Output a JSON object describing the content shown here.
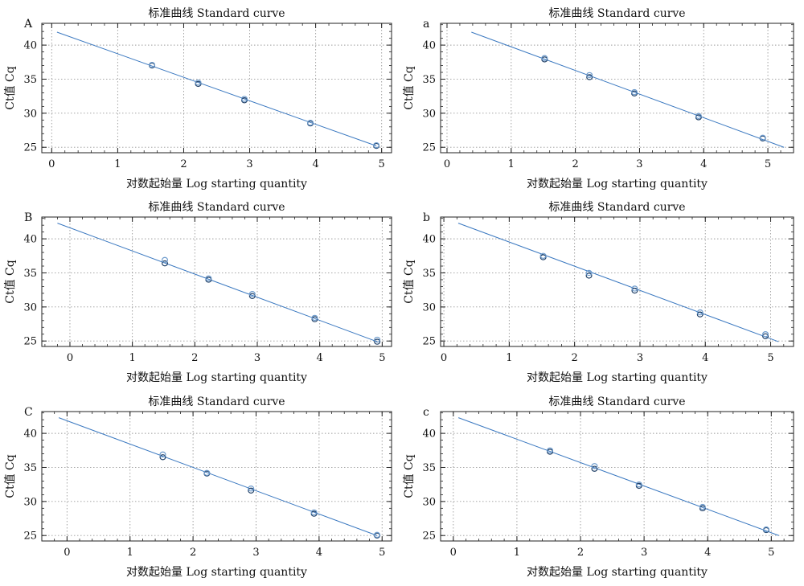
{
  "colors": {
    "fit_line": "#3a78c0",
    "point_dark": "#1f3f66",
    "point_light": "#6e9bcc"
  },
  "chart_data": [
    {
      "type": "scatter",
      "panel_tag": "A",
      "title": "标准曲线 Standard curve",
      "xlabel": "对数起始量 Log starting quantity",
      "ylabel": "Ct值 Cq",
      "xlim": [
        -0.15,
        5.15
      ],
      "ylim": [
        24.2,
        43.2
      ],
      "xticks": [
        0,
        1,
        2,
        3,
        4,
        5
      ],
      "yticks": [
        25,
        30,
        35,
        40
      ],
      "grid": true,
      "series": [
        {
          "points": [
            [
              1.52,
              37.0
            ],
            [
              1.52,
              37.1
            ],
            [
              2.22,
              34.3
            ],
            [
              2.22,
              34.5
            ],
            [
              2.92,
              31.9
            ],
            [
              2.92,
              32.1
            ],
            [
              3.92,
              28.5
            ],
            [
              3.92,
              28.6
            ],
            [
              4.92,
              25.2
            ],
            [
              4.92,
              25.3
            ]
          ]
        }
      ],
      "fit": {
        "x": [
          0.08,
          4.92
        ],
        "y": [
          41.9,
          25.2
        ]
      }
    },
    {
      "type": "scatter",
      "panel_tag": "a",
      "title": "标准曲线 Standard curve",
      "xlabel": "对数起始量 Log starting quantity",
      "ylabel": "Ct值 Cq",
      "xlim": [
        -0.1,
        5.4
      ],
      "ylim": [
        24.2,
        43.2
      ],
      "xticks": [
        0,
        1,
        2,
        3,
        4,
        5
      ],
      "yticks": [
        25,
        30,
        35,
        40
      ],
      "grid": true,
      "series": [
        {
          "points": [
            [
              1.52,
              37.9
            ],
            [
              1.52,
              38.1
            ],
            [
              2.22,
              35.3
            ],
            [
              2.22,
              35.6
            ],
            [
              2.92,
              32.9
            ],
            [
              2.92,
              33.1
            ],
            [
              3.92,
              29.4
            ],
            [
              3.92,
              29.6
            ],
            [
              4.92,
              26.3
            ],
            [
              4.92,
              26.4
            ]
          ]
        }
      ],
      "fit": {
        "x": [
          0.38,
          5.25
        ],
        "y": [
          41.9,
          25.0
        ]
      }
    },
    {
      "type": "scatter",
      "panel_tag": "B",
      "title": "标准曲线 Standard curve",
      "xlabel": "对数起始量 Log starting quantity",
      "ylabel": "Ct值 Cq",
      "xlim": [
        -0.45,
        5.15
      ],
      "ylim": [
        24.2,
        43.2
      ],
      "xticks": [
        0,
        1,
        2,
        3,
        4,
        5
      ],
      "yticks": [
        25,
        30,
        35,
        40
      ],
      "grid": true,
      "series": [
        {
          "points": [
            [
              1.52,
              36.4
            ],
            [
              1.52,
              36.9
            ],
            [
              2.22,
              34.0
            ],
            [
              2.22,
              34.2
            ],
            [
              2.92,
              31.6
            ],
            [
              2.92,
              31.9
            ],
            [
              3.92,
              28.2
            ],
            [
              3.92,
              28.4
            ],
            [
              4.92,
              24.9
            ],
            [
              4.92,
              25.2
            ]
          ]
        }
      ],
      "fit": {
        "x": [
          -0.2,
          4.92
        ],
        "y": [
          42.3,
          24.9
        ]
      }
    },
    {
      "type": "scatter",
      "panel_tag": "b",
      "title": "标准曲线 Standard curve",
      "xlabel": "对数起始量 Log starting quantity",
      "ylabel": "Ct值 Cq",
      "xlim": [
        -0.05,
        5.35
      ],
      "ylim": [
        24.2,
        43.2
      ],
      "xticks": [
        0,
        1,
        2,
        3,
        4,
        5
      ],
      "yticks": [
        25,
        30,
        35,
        40
      ],
      "grid": true,
      "series": [
        {
          "points": [
            [
              1.52,
              37.3
            ],
            [
              1.52,
              37.5
            ],
            [
              2.22,
              34.6
            ],
            [
              2.22,
              35.0
            ],
            [
              2.92,
              32.4
            ],
            [
              2.92,
              32.7
            ],
            [
              3.92,
              28.9
            ],
            [
              3.92,
              29.2
            ],
            [
              4.92,
              25.7
            ],
            [
              4.92,
              26.0
            ]
          ]
        }
      ],
      "fit": {
        "x": [
          0.22,
          5.12
        ],
        "y": [
          42.3,
          24.9
        ]
      }
    },
    {
      "type": "scatter",
      "panel_tag": "C",
      "title": "标准曲线 Standard curve",
      "xlabel": "对数起始量 Log starting quantity",
      "ylabel": "Ct值 Cq",
      "xlim": [
        -0.4,
        5.15
      ],
      "ylim": [
        24.2,
        43.2
      ],
      "xticks": [
        0,
        1,
        2,
        3,
        4,
        5
      ],
      "yticks": [
        25,
        30,
        35,
        40
      ],
      "grid": true,
      "series": [
        {
          "points": [
            [
              1.52,
              36.5
            ],
            [
              1.52,
              36.9
            ],
            [
              2.22,
              34.1
            ],
            [
              2.22,
              34.2
            ],
            [
              2.92,
              31.6
            ],
            [
              2.92,
              31.9
            ],
            [
              3.92,
              28.2
            ],
            [
              3.92,
              28.4
            ],
            [
              4.92,
              25.0
            ],
            [
              4.92,
              25.1
            ]
          ]
        }
      ],
      "fit": {
        "x": [
          -0.13,
          4.92
        ],
        "y": [
          42.3,
          25.0
        ]
      }
    },
    {
      "type": "scatter",
      "panel_tag": "c",
      "title": "标准曲线 Standard curve",
      "xlabel": "对数起始量 Log starting quantity",
      "ylabel": "Ct值 Cq",
      "xlim": [
        -0.2,
        5.35
      ],
      "ylim": [
        24.2,
        43.2
      ],
      "xticks": [
        0,
        1,
        2,
        3,
        4,
        5
      ],
      "yticks": [
        25,
        30,
        35,
        40
      ],
      "grid": true,
      "series": [
        {
          "points": [
            [
              1.52,
              37.3
            ],
            [
              1.52,
              37.5
            ],
            [
              2.22,
              34.8
            ],
            [
              2.22,
              35.2
            ],
            [
              2.92,
              32.3
            ],
            [
              2.92,
              32.5
            ],
            [
              3.92,
              29.0
            ],
            [
              3.92,
              29.2
            ],
            [
              4.92,
              25.8
            ],
            [
              4.92,
              25.9
            ]
          ]
        }
      ],
      "fit": {
        "x": [
          0.08,
          5.12
        ],
        "y": [
          42.3,
          25.0
        ]
      }
    }
  ]
}
